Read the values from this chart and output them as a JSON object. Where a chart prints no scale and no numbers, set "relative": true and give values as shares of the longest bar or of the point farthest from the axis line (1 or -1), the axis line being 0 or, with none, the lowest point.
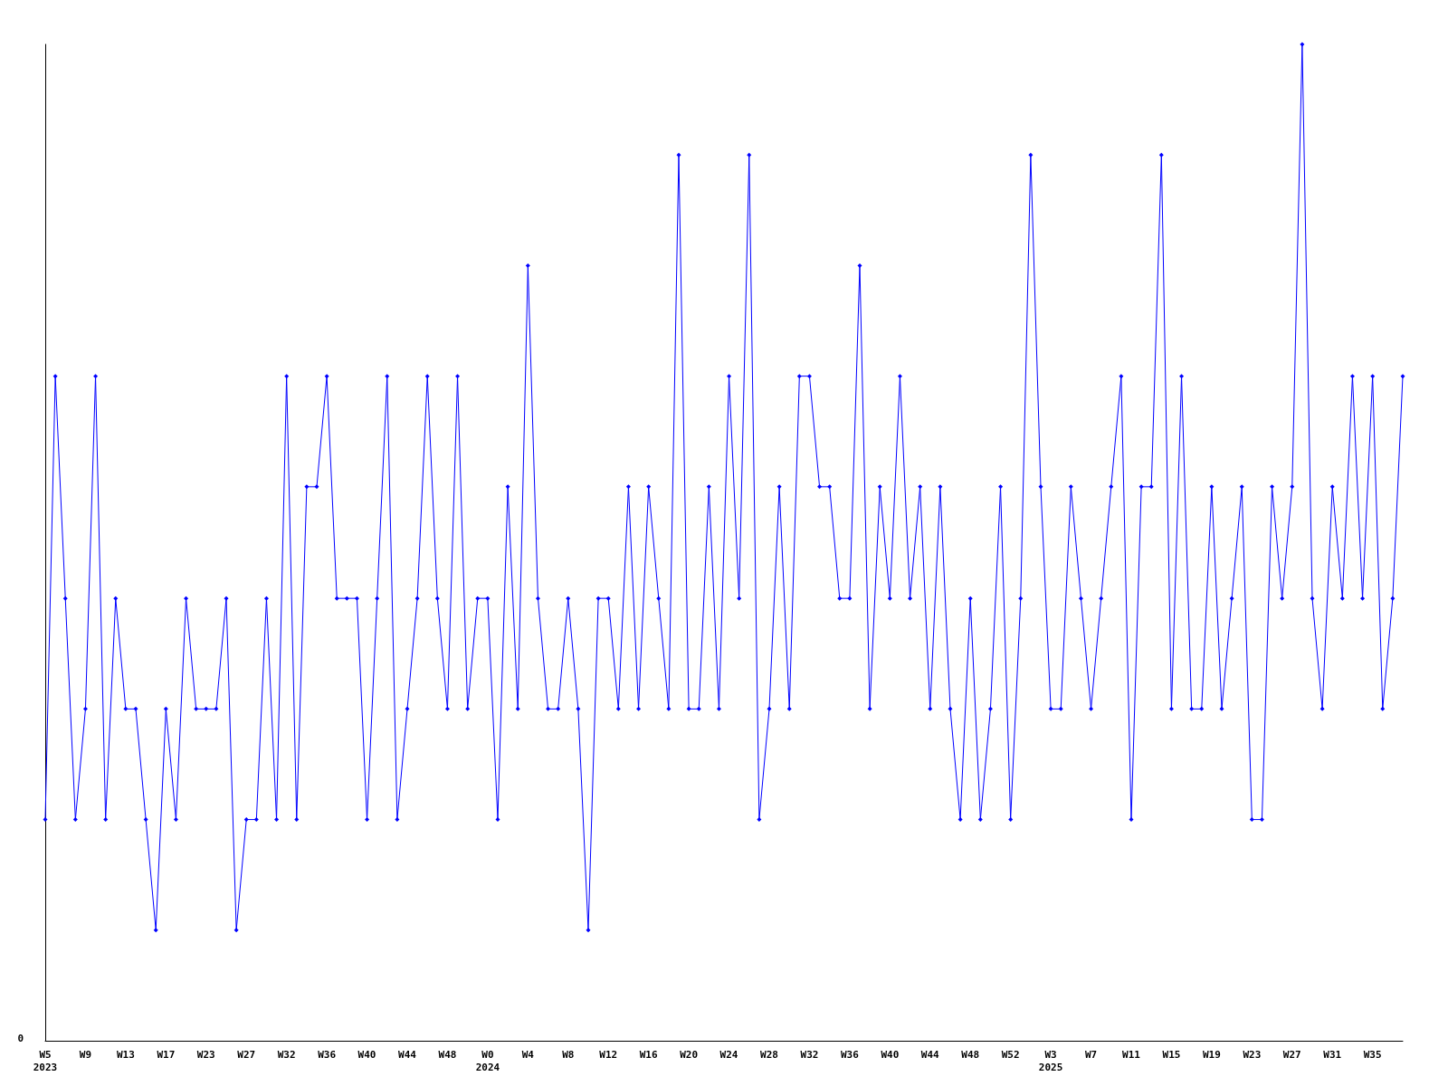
{
  "chart_data": {
    "type": "line",
    "relative": true,
    "grid": false,
    "marker": "diamond",
    "line_style": "solid",
    "annotations": [
      "0"
    ],
    "categories": [
      "W5\n2023",
      null,
      null,
      null,
      "W9",
      null,
      null,
      null,
      "W13",
      null,
      null,
      null,
      "W17",
      null,
      null,
      null,
      "W23",
      null,
      null,
      null,
      "W27",
      null,
      null,
      null,
      "W32",
      null,
      null,
      null,
      "W36",
      null,
      null,
      null,
      "W40",
      null,
      null,
      null,
      "W44",
      null,
      null,
      null,
      "W48",
      null,
      null,
      null,
      "W0\n2024",
      null,
      null,
      null,
      "W4",
      null,
      null,
      null,
      "W8",
      null,
      null,
      null,
      "W12",
      null,
      null,
      null,
      "W16",
      null,
      null,
      null,
      "W20",
      null,
      null,
      null,
      "W24",
      null,
      null,
      null,
      "W28",
      null,
      null,
      null,
      "W32",
      null,
      null,
      null,
      "W36",
      null,
      null,
      null,
      "W40",
      null,
      null,
      null,
      "W44",
      null,
      null,
      null,
      "W48",
      null,
      null,
      null,
      "W52",
      null,
      null,
      null,
      "W3\n2025",
      null,
      null,
      null,
      "W7",
      null,
      null,
      null,
      "W11",
      null,
      null,
      null,
      "W15",
      null,
      null,
      null,
      "W19",
      null,
      null,
      null,
      "W23",
      null,
      null,
      null,
      "W27",
      null,
      null,
      null,
      "W31",
      null,
      null,
      null,
      "W35",
      null,
      null,
      null
    ],
    "series": [
      {
        "color": "#0000ff",
        "values": [
          0.222,
          0.667,
          0.444,
          0.222,
          0.333,
          0.667,
          0.222,
          0.444,
          0.333,
          0.333,
          0.222,
          0.111,
          0.333,
          0.222,
          0.444,
          0.333,
          0.333,
          0.333,
          0.444,
          0.111,
          0.222,
          0.222,
          0.444,
          0.222,
          0.667,
          0.222,
          0.556,
          0.556,
          0.667,
          0.444,
          0.444,
          0.444,
          0.222,
          0.444,
          0.667,
          0.222,
          0.333,
          0.444,
          0.667,
          0.444,
          0.333,
          0.667,
          0.333,
          0.444,
          0.444,
          0.222,
          0.556,
          0.333,
          0.778,
          0.444,
          0.333,
          0.333,
          0.444,
          0.333,
          0.111,
          0.444,
          0.444,
          0.333,
          0.556,
          0.333,
          0.556,
          0.444,
          0.333,
          0.889,
          0.333,
          0.333,
          0.556,
          0.333,
          0.667,
          0.444,
          0.889,
          0.222,
          0.333,
          0.556,
          0.333,
          0.667,
          0.667,
          0.556,
          0.556,
          0.444,
          0.444,
          0.778,
          0.333,
          0.556,
          0.444,
          0.667,
          0.444,
          0.556,
          0.333,
          0.556,
          0.333,
          0.222,
          0.444,
          0.222,
          0.333,
          0.556,
          0.222,
          0.444,
          0.889,
          0.556,
          0.333,
          0.333,
          0.556,
          0.444,
          0.333,
          0.444,
          0.556,
          0.667,
          0.222,
          0.556,
          0.556,
          0.889,
          0.333,
          0.667,
          0.333,
          0.333,
          0.556,
          0.333,
          0.444,
          0.556,
          0.222,
          0.222,
          0.556,
          0.444,
          0.556,
          1,
          0.444,
          0.333,
          0.556,
          0.444,
          0.667,
          0.444,
          0.667,
          0.333,
          0.444,
          0.667
        ]
      }
    ]
  }
}
